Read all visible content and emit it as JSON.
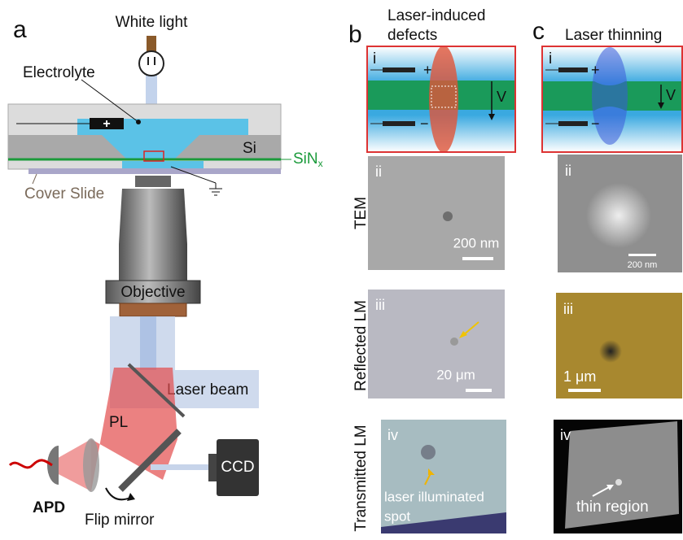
{
  "panel_a": {
    "label": "a",
    "white_light": "White light",
    "electrolyte": "Electrolyte",
    "electrode_sign": "+",
    "si": "Si",
    "sin": "SiN",
    "sin_subscript": "x",
    "cover_slide": "Cover Slide",
    "objective": "Objective",
    "laser_beam": "Laser beam",
    "pl": "PL",
    "apd": "APD",
    "ccd": "CCD",
    "flip_mirror": "Flip mirror"
  },
  "row_labels": [
    "TEM",
    "Reflected LM",
    "Transmitted LM"
  ],
  "panel_b": {
    "label": "b",
    "title_lines": [
      "Laser-induced",
      "defects"
    ],
    "schematic": {
      "label": "i",
      "plus": "+",
      "minus": "−",
      "voltage": "V"
    },
    "tem": {
      "label": "ii",
      "scale": "200 nm"
    },
    "reflected": {
      "label": "iii",
      "scale": "20 μm"
    },
    "transmitted": {
      "label": "iv",
      "annotation_lines": [
        "laser illuminated",
        "spot"
      ]
    }
  },
  "panel_c": {
    "label": "c",
    "title": "Laser thinning",
    "schematic": {
      "label": "i",
      "plus": "+",
      "minus": "−",
      "voltage": "V"
    },
    "tem": {
      "label": "ii",
      "scale": "200 nm"
    },
    "reflected": {
      "label": "iii",
      "scale": "1 μm"
    },
    "transmitted": {
      "label": "iv",
      "annotation": "thin region"
    }
  }
}
